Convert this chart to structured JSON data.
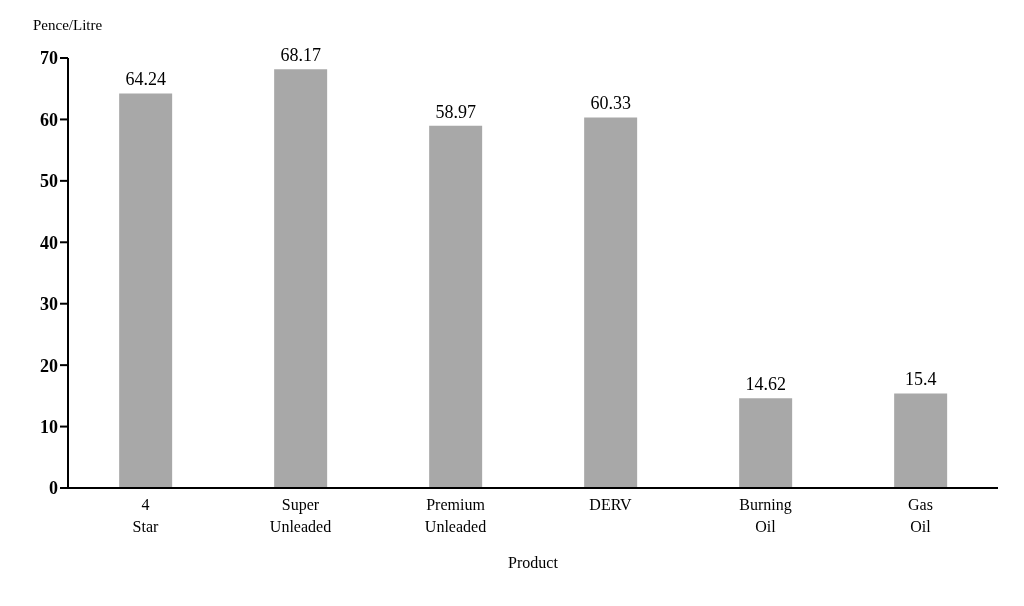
{
  "chart_data": {
    "type": "bar",
    "ylabel": "Pence/Litre",
    "xlabel": "Product",
    "categories": [
      "4 Star",
      "Super Unleaded",
      "Premium Unleaded",
      "DERV",
      "Burning Oil",
      "Gas Oil"
    ],
    "values": [
      64.24,
      68.17,
      58.97,
      60.33,
      14.62,
      15.4
    ],
    "color": "#a8a8a8",
    "ylim": [
      0,
      70
    ],
    "yticks": [
      0,
      10,
      20,
      30,
      40,
      50,
      60,
      70
    ],
    "grid": false,
    "data_labels": true
  }
}
